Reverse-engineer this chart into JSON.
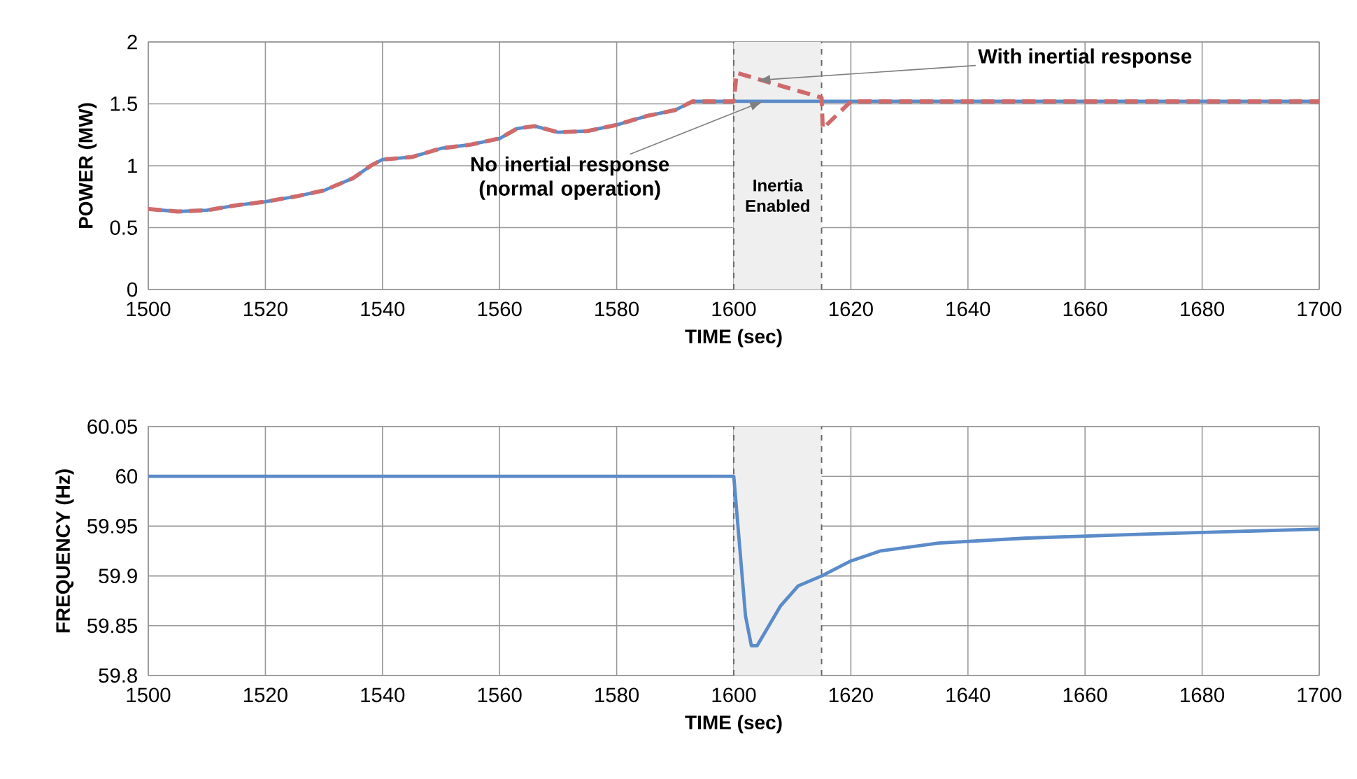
{
  "chart_data": [
    {
      "type": "line",
      "xlabel": "TIME (sec)",
      "ylabel": "POWER (MW)",
      "xlim": [
        1500,
        1700
      ],
      "ylim": [
        0,
        2
      ],
      "xticks": [
        1500,
        1520,
        1540,
        1560,
        1580,
        1600,
        1620,
        1640,
        1660,
        1680,
        1700
      ],
      "yticks": [
        0,
        0.5,
        1,
        1.5,
        2
      ],
      "grid": true,
      "series": [
        {
          "color": "#5b8bc9",
          "line_style": "solid",
          "x": [
            1500,
            1505,
            1510,
            1515,
            1520,
            1525,
            1530,
            1535,
            1538,
            1540,
            1545,
            1550,
            1555,
            1560,
            1563,
            1566,
            1570,
            1575,
            1580,
            1585,
            1590,
            1593,
            1600,
            1615,
            1620,
            1700
          ],
          "values": [
            0.65,
            0.63,
            0.64,
            0.68,
            0.71,
            0.75,
            0.8,
            0.9,
            1.0,
            1.05,
            1.07,
            1.14,
            1.17,
            1.22,
            1.3,
            1.32,
            1.27,
            1.28,
            1.33,
            1.4,
            1.45,
            1.52,
            1.52,
            1.52,
            1.52,
            1.52
          ]
        },
        {
          "color": "#d06a6a",
          "line_style": "dashed",
          "x": [
            1500,
            1505,
            1510,
            1515,
            1520,
            1525,
            1530,
            1535,
            1538,
            1540,
            1545,
            1550,
            1555,
            1560,
            1563,
            1566,
            1570,
            1575,
            1580,
            1585,
            1590,
            1593,
            1600,
            1600.5,
            1615,
            1615.2,
            1620,
            1700
          ],
          "values": [
            0.65,
            0.63,
            0.64,
            0.68,
            0.71,
            0.75,
            0.8,
            0.9,
            1.0,
            1.05,
            1.07,
            1.14,
            1.17,
            1.22,
            1.3,
            1.32,
            1.27,
            1.28,
            1.33,
            1.4,
            1.45,
            1.52,
            1.52,
            1.75,
            1.55,
            1.3,
            1.52,
            1.52
          ]
        }
      ],
      "bands": [
        {
          "axis": "x",
          "from": 1600,
          "to": 1615,
          "label": "Inertia Enabled",
          "color": "#efefef"
        }
      ],
      "ref_lines": [
        {
          "axis": "x",
          "value": 1600,
          "color": "#666666",
          "line_style": "dashed"
        },
        {
          "axis": "x",
          "value": 1615,
          "color": "#666666",
          "line_style": "dashed"
        }
      ],
      "annotations": [
        {
          "text": "No inertial response (normal operation)",
          "x": 1605,
          "y": 1.52
        },
        {
          "text": "With inertial response",
          "x": 1604,
          "y": 1.69
        }
      ]
    },
    {
      "type": "line",
      "xlabel": "TIME (sec)",
      "ylabel": "FREQUENCY (Hz)",
      "xlim": [
        1500,
        1700
      ],
      "ylim": [
        59.8,
        60.05
      ],
      "xticks": [
        1500,
        1520,
        1540,
        1560,
        1580,
        1600,
        1620,
        1640,
        1660,
        1680,
        1700
      ],
      "yticks": [
        59.8,
        59.85,
        59.9,
        59.95,
        60,
        60.05
      ],
      "grid": true,
      "series": [
        {
          "color": "#5b8bc9",
          "line_style": "solid",
          "x": [
            1500,
            1600,
            1601,
            1602,
            1603,
            1604,
            1606,
            1608,
            1611,
            1615,
            1620,
            1625,
            1635,
            1650,
            1670,
            1700
          ],
          "values": [
            60,
            60,
            59.93,
            59.86,
            59.83,
            59.83,
            59.85,
            59.87,
            59.89,
            59.9,
            59.915,
            59.925,
            59.933,
            59.938,
            59.942,
            59.947
          ]
        }
      ],
      "bands": [
        {
          "axis": "x",
          "from": 1600,
          "to": 1615,
          "color": "#efefef"
        }
      ],
      "ref_lines": [
        {
          "axis": "x",
          "value": 1600,
          "color": "#666666",
          "line_style": "dashed"
        },
        {
          "axis": "x",
          "value": 1615,
          "color": "#666666",
          "line_style": "dashed"
        }
      ]
    }
  ]
}
